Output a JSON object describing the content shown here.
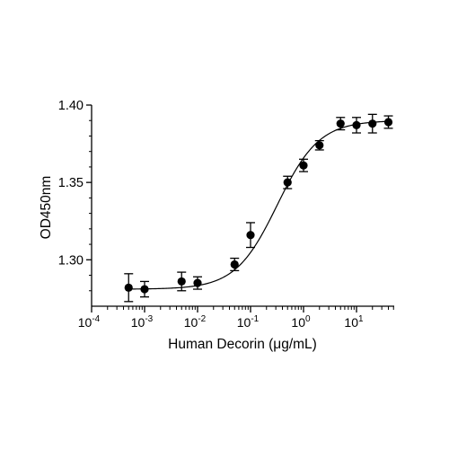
{
  "chart_data": {
    "type": "scatter",
    "xlabel": "Human Decorin (μg/mL)",
    "ylabel": "OD450nm",
    "x_scale": "log",
    "xlim": [
      0.0001,
      50
    ],
    "ylim": [
      1.27,
      1.4
    ],
    "x_ticks": [
      {
        "value": 0.0001,
        "base": "10",
        "exp": "-4"
      },
      {
        "value": 0.001,
        "base": "10",
        "exp": "-3"
      },
      {
        "value": 0.01,
        "base": "10",
        "exp": "-2"
      },
      {
        "value": 0.1,
        "base": "10",
        "exp": "-1"
      },
      {
        "value": 1,
        "base": "10",
        "exp": "0"
      },
      {
        "value": 10,
        "base": "10",
        "exp": "1"
      }
    ],
    "y_ticks": [
      {
        "value": 1.3,
        "label": "1.30"
      },
      {
        "value": 1.35,
        "label": "1.35"
      },
      {
        "value": 1.4,
        "label": "1.40"
      }
    ],
    "points": [
      {
        "x": 0.0005,
        "y": 1.282,
        "err": 0.009
      },
      {
        "x": 0.001,
        "y": 1.281,
        "err": 0.005
      },
      {
        "x": 0.005,
        "y": 1.286,
        "err": 0.006
      },
      {
        "x": 0.01,
        "y": 1.285,
        "err": 0.004
      },
      {
        "x": 0.05,
        "y": 1.297,
        "err": 0.004
      },
      {
        "x": 0.1,
        "y": 1.316,
        "err": 0.008
      },
      {
        "x": 0.5,
        "y": 1.35,
        "err": 0.004
      },
      {
        "x": 1,
        "y": 1.361,
        "err": 0.004
      },
      {
        "x": 2,
        "y": 1.374,
        "err": 0.003
      },
      {
        "x": 5,
        "y": 1.388,
        "err": 0.004
      },
      {
        "x": 10,
        "y": 1.387,
        "err": 0.005
      },
      {
        "x": 20,
        "y": 1.388,
        "err": 0.006
      },
      {
        "x": 40,
        "y": 1.389,
        "err": 0.004
      }
    ],
    "fit": {
      "model": "4PL",
      "bottom": 1.281,
      "top": 1.39,
      "ec50": 0.32,
      "hill": 1.1
    },
    "grid": false,
    "marker_color": "#000000"
  }
}
